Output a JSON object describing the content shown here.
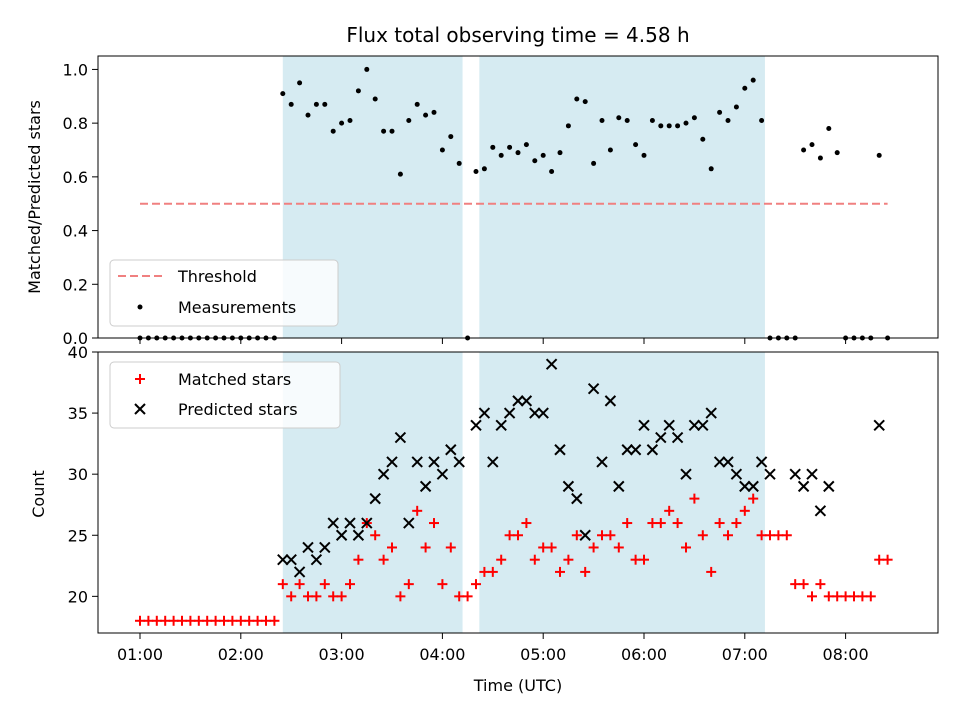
{
  "title": "Flux total observing time = 4.58 h",
  "colors": {
    "threshold": "#f08080",
    "measurement": "#000000",
    "matched": "#ff0000",
    "predicted": "#000000",
    "span": "#add8e6"
  },
  "chart_data": [
    {
      "type": "scatter",
      "id": "ratio",
      "ylabel": "Matched/Predicted stars",
      "ylim": [
        0,
        1.05
      ],
      "yticks": [
        {
          "v": 0.0,
          "label": "0.0"
        },
        {
          "v": 0.2,
          "label": "0.2"
        },
        {
          "v": 0.4,
          "label": "0.4"
        },
        {
          "v": 0.6,
          "label": "0.6"
        },
        {
          "v": 0.8,
          "label": "0.8"
        },
        {
          "v": 1.0,
          "label": "1.0"
        }
      ],
      "legend": {
        "placement": "lower-left",
        "entries": [
          "Threshold",
          "Measurements"
        ]
      },
      "threshold": {
        "name": "Threshold",
        "y": 0.5,
        "x": [
          "01:00",
          "08:25"
        ]
      },
      "series": [
        {
          "name": "Measurements",
          "x": [
            "01:00",
            "01:05",
            "01:10",
            "01:15",
            "01:20",
            "01:25",
            "01:30",
            "01:35",
            "01:40",
            "01:45",
            "01:50",
            "01:55",
            "02:00",
            "02:05",
            "02:10",
            "02:15",
            "02:20",
            "02:25",
            "02:30",
            "02:35",
            "02:40",
            "02:45",
            "02:50",
            "02:55",
            "03:00",
            "03:05",
            "03:10",
            "03:15",
            "03:20",
            "03:25",
            "03:30",
            "03:35",
            "03:40",
            "03:45",
            "03:50",
            "03:55",
            "04:00",
            "04:05",
            "04:10",
            "04:15",
            "04:20",
            "04:25",
            "04:30",
            "04:35",
            "04:40",
            "04:45",
            "04:50",
            "04:55",
            "05:00",
            "05:05",
            "05:10",
            "05:15",
            "05:20",
            "05:25",
            "05:30",
            "05:35",
            "05:40",
            "05:45",
            "05:50",
            "05:55",
            "06:00",
            "06:05",
            "06:10",
            "06:15",
            "06:20",
            "06:25",
            "06:30",
            "06:35",
            "06:40",
            "06:45",
            "06:50",
            "06:55",
            "07:00",
            "07:05",
            "07:10",
            "07:15",
            "07:20",
            "07:25",
            "07:30",
            "07:35",
            "07:40",
            "07:45",
            "07:50",
            "07:55",
            "08:00",
            "08:05",
            "08:10",
            "08:15",
            "08:20",
            "08:25"
          ],
          "y": [
            0,
            0,
            0,
            0,
            0,
            0,
            0,
            0,
            0,
            0,
            0,
            0,
            0,
            0,
            0,
            0,
            0,
            0.91,
            0.87,
            0.95,
            0.83,
            0.87,
            0.87,
            0.77,
            0.8,
            0.81,
            0.92,
            1.0,
            0.89,
            0.77,
            0.77,
            0.61,
            0.81,
            0.87,
            0.83,
            0.84,
            0.7,
            0.75,
            0.65,
            0,
            0.62,
            0.63,
            0.71,
            0.68,
            0.71,
            0.69,
            0.72,
            0.66,
            0.68,
            0.62,
            0.69,
            0.79,
            0.89,
            0.88,
            0.65,
            0.81,
            0.7,
            0.82,
            0.81,
            0.72,
            0.68,
            0.81,
            0.79,
            0.79,
            0.79,
            0.8,
            0.82,
            0.74,
            0.63,
            0.84,
            0.81,
            0.86,
            0.93,
            0.96,
            0.81,
            0,
            0,
            0,
            0,
            0.7,
            0.72,
            0.67,
            0.78,
            0.69,
            0,
            0,
            0,
            0,
            0.68,
            0
          ]
        }
      ]
    },
    {
      "type": "scatter",
      "id": "counts",
      "ylabel": "Count",
      "xlabel": "Time (UTC)",
      "ylim": [
        17,
        40
      ],
      "yticks": [
        {
          "v": 20,
          "label": "20"
        },
        {
          "v": 25,
          "label": "25"
        },
        {
          "v": 30,
          "label": "30"
        },
        {
          "v": 35,
          "label": "35"
        },
        {
          "v": 40,
          "label": "40"
        }
      ],
      "xlim": [
        "00:35",
        "08:55"
      ],
      "xticks": [
        "01:00",
        "02:00",
        "03:00",
        "04:00",
        "05:00",
        "06:00",
        "07:00",
        "08:00"
      ],
      "legend": {
        "placement": "upper-left",
        "entries": [
          "Matched stars",
          "Predicted stars"
        ]
      },
      "series": [
        {
          "name": "Matched stars",
          "marker": "plus",
          "x": [
            "01:00",
            "01:05",
            "01:10",
            "01:15",
            "01:20",
            "01:25",
            "01:30",
            "01:35",
            "01:40",
            "01:45",
            "01:50",
            "01:55",
            "02:00",
            "02:05",
            "02:10",
            "02:15",
            "02:20",
            "02:25",
            "02:30",
            "02:35",
            "02:40",
            "02:45",
            "02:50",
            "02:55",
            "03:00",
            "03:05",
            "03:10",
            "03:15",
            "03:20",
            "03:25",
            "03:30",
            "03:35",
            "03:40",
            "03:45",
            "03:50",
            "03:55",
            "04:00",
            "04:05",
            "04:10",
            "04:15",
            "04:20",
            "04:25",
            "04:30",
            "04:35",
            "04:40",
            "04:45",
            "04:50",
            "04:55",
            "05:00",
            "05:05",
            "05:10",
            "05:15",
            "05:20",
            "05:25",
            "05:30",
            "05:35",
            "05:40",
            "05:45",
            "05:50",
            "05:55",
            "06:00",
            "06:05",
            "06:10",
            "06:15",
            "06:20",
            "06:25",
            "06:30",
            "06:35",
            "06:40",
            "06:45",
            "06:50",
            "06:55",
            "07:00",
            "07:05",
            "07:10",
            "07:15",
            "07:20",
            "07:25",
            "07:30",
            "07:35",
            "07:40",
            "07:45",
            "07:50",
            "07:55",
            "08:00",
            "08:05",
            "08:10",
            "08:15",
            "08:20",
            "08:25"
          ],
          "y": [
            18,
            18,
            18,
            18,
            18,
            18,
            18,
            18,
            18,
            18,
            18,
            18,
            18,
            18,
            18,
            18,
            18,
            21,
            20,
            21,
            20,
            20,
            21,
            20,
            20,
            21,
            23,
            26,
            25,
            23,
            24,
            20,
            21,
            27,
            24,
            26,
            21,
            24,
            20,
            20,
            21,
            22,
            22,
            23,
            25,
            25,
            26,
            23,
            24,
            24,
            22,
            23,
            25,
            22,
            24,
            25,
            25,
            24,
            26,
            23,
            23,
            26,
            26,
            27,
            26,
            24,
            28,
            25,
            22,
            26,
            25,
            26,
            27,
            28,
            25,
            25,
            25,
            25,
            21,
            21,
            20,
            21,
            20,
            20,
            20,
            20,
            20,
            20,
            23,
            23
          ]
        },
        {
          "name": "Predicted stars",
          "marker": "x",
          "x": [
            "02:25",
            "02:30",
            "02:35",
            "02:40",
            "02:45",
            "02:50",
            "02:55",
            "03:00",
            "03:05",
            "03:10",
            "03:15",
            "03:20",
            "03:25",
            "03:30",
            "03:35",
            "03:40",
            "03:45",
            "03:50",
            "03:55",
            "04:00",
            "04:05",
            "04:10",
            "04:20",
            "04:25",
            "04:30",
            "04:35",
            "04:40",
            "04:45",
            "04:50",
            "04:55",
            "05:00",
            "05:05",
            "05:10",
            "05:15",
            "05:20",
            "05:25",
            "05:30",
            "05:35",
            "05:40",
            "05:45",
            "05:50",
            "05:55",
            "06:00",
            "06:05",
            "06:10",
            "06:15",
            "06:20",
            "06:25",
            "06:30",
            "06:35",
            "06:40",
            "06:45",
            "06:50",
            "06:55",
            "07:00",
            "07:05",
            "07:10",
            "07:15",
            "07:30",
            "07:35",
            "07:40",
            "07:45",
            "07:50",
            "08:20"
          ],
          "y": [
            23,
            23,
            22,
            24,
            23,
            24,
            26,
            25,
            26,
            25,
            26,
            28,
            30,
            31,
            33,
            26,
            31,
            29,
            31,
            30,
            32,
            31,
            34,
            35,
            31,
            34,
            35,
            36,
            36,
            35,
            35,
            39,
            32,
            29,
            28,
            25,
            37,
            31,
            36,
            29,
            32,
            32,
            34,
            32,
            33,
            34,
            33,
            30,
            34,
            34,
            35,
            31,
            31,
            30,
            29,
            29,
            31,
            30,
            30,
            29,
            30,
            27,
            29,
            34
          ]
        }
      ]
    }
  ],
  "observing_spans": [
    [
      "02:25",
      "04:12"
    ],
    [
      "04:22",
      "07:12"
    ]
  ]
}
